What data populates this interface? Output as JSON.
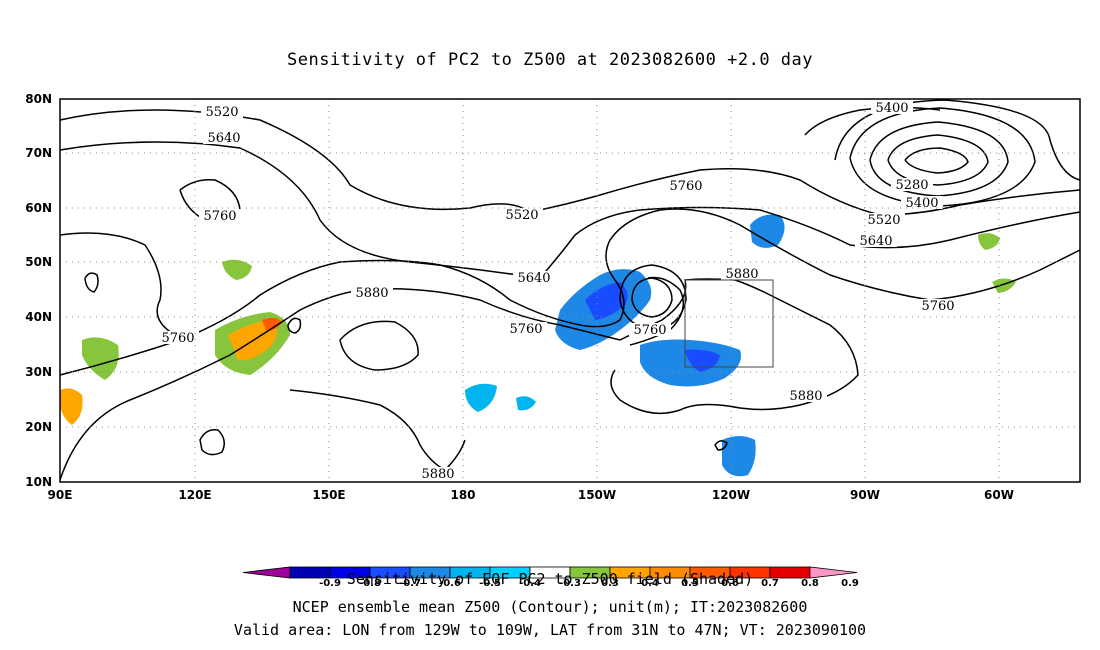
{
  "title": "Sensitivity of PC2 to Z500 at 2023082600 +2.0 day",
  "axes": {
    "x_ticks": [
      "90E",
      "120E",
      "150E",
      "180",
      "150W",
      "120W",
      "90W",
      "60W"
    ],
    "y_ticks": [
      "10N",
      "20N",
      "30N",
      "40N",
      "50N",
      "60N",
      "70N",
      "80N"
    ]
  },
  "contour_labels": [
    "5520",
    "5640",
    "5760",
    "5760",
    "5520",
    "5640",
    "5760",
    "5880",
    "5760",
    "5880",
    "5760",
    "5400",
    "5280",
    "5400",
    "5520",
    "5640",
    "5760",
    "5880",
    "5880"
  ],
  "valid_box": {
    "lon_from": "129W",
    "lon_to": "109W",
    "lat_from": "31N",
    "lat_to": "47N"
  },
  "colorbar": {
    "labels": [
      "-0.9",
      "-0.8",
      "-0.7",
      "-0.6",
      "-0.5",
      "-0.4",
      "-0.3",
      "0.3",
      "0.4",
      "0.5",
      "0.6",
      "0.7",
      "0.8",
      "0.9"
    ],
    "colors": [
      "#a0009a",
      "#0000b4",
      "#0000e6",
      "#1a4cff",
      "#1e88e6",
      "#00b4f0",
      "#00d2ff",
      "#ffffff",
      "#86c53c",
      "#ffa500",
      "#ff8c00",
      "#ff5a00",
      "#ff3200",
      "#e60000",
      "#ff96c8"
    ]
  },
  "captions": [
    "Sensitivity of EOF PC2 to Z500 field (Shaded)",
    "NCEP ensemble mean Z500 (Contour); unit(m); IT:2023082600",
    "Valid area: LON from 129W to 109W, LAT from 31N to 47N; VT: 2023090100"
  ]
}
